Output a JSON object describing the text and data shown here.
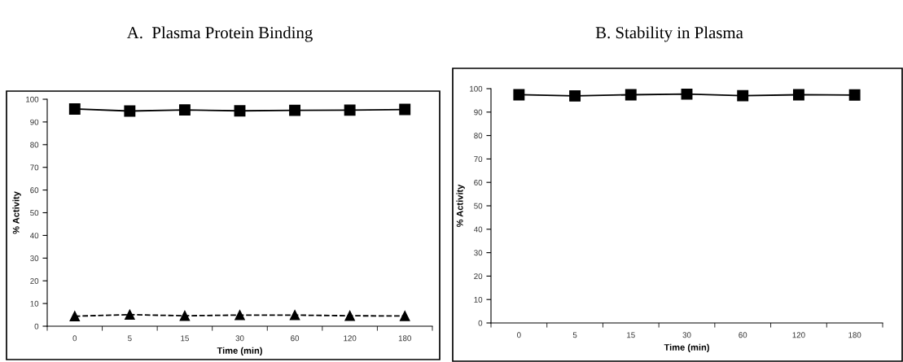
{
  "chart_data": [
    {
      "type": "line",
      "title": "A.  Plasma Protein Binding",
      "xlabel": "Time (min)",
      "ylabel": "% Activity",
      "categories": [
        "0",
        "5",
        "15",
        "30",
        "60",
        "120",
        "180"
      ],
      "ylim": [
        0,
        100
      ],
      "yticks": [
        0,
        10,
        20,
        30,
        40,
        50,
        60,
        70,
        80,
        90,
        100
      ],
      "grid": false,
      "legend": false,
      "series": [
        {
          "color": "#000000",
          "marker": "square",
          "line_style": "solid",
          "values": [
            95.7,
            94.8,
            95.3,
            94.9,
            95.1,
            95.2,
            95.5
          ]
        },
        {
          "color": "#000000",
          "marker": "triangle",
          "line_style": "dashed",
          "values": [
            4.4,
            5.1,
            4.6,
            4.9,
            4.9,
            4.6,
            4.5
          ]
        }
      ]
    },
    {
      "type": "line",
      "title": "B. Stability in Plasma",
      "xlabel": "Time (min)",
      "ylabel": "% Activity",
      "categories": [
        "0",
        "5",
        "15",
        "30",
        "60",
        "120",
        "180"
      ],
      "ylim": [
        0,
        100
      ],
      "yticks": [
        0,
        10,
        20,
        30,
        40,
        50,
        60,
        70,
        80,
        90,
        100
      ],
      "grid": false,
      "legend": false,
      "series": [
        {
          "color": "#000000",
          "marker": "square",
          "line_style": "solid",
          "values": [
            97.4,
            96.9,
            97.4,
            97.7,
            97.0,
            97.4,
            97.3
          ]
        }
      ]
    }
  ]
}
